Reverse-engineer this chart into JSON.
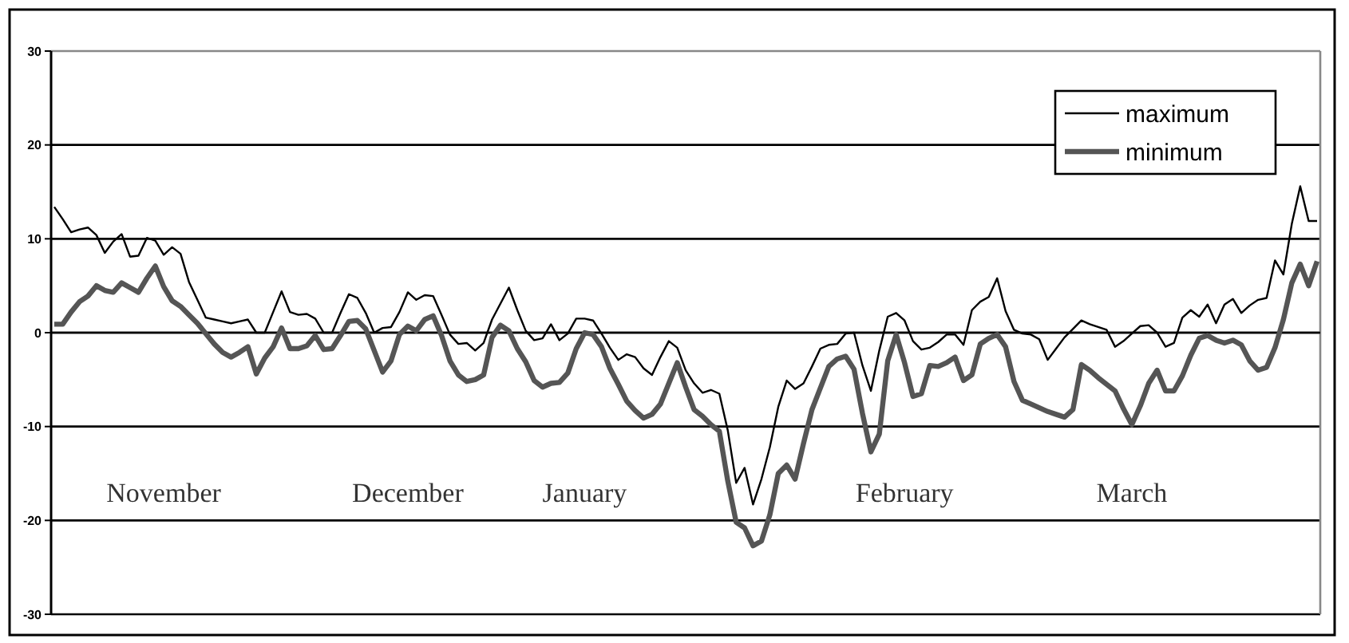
{
  "chart_data": {
    "type": "line",
    "categories": [
      null,
      null,
      null,
      null,
      null,
      null,
      null,
      null,
      null,
      null,
      null,
      null,
      null,
      "November",
      null,
      null,
      null,
      null,
      null,
      null,
      null,
      null,
      null,
      null,
      null,
      null,
      null,
      null,
      null,
      null,
      null,
      null,
      null,
      null,
      null,
      null,
      null,
      null,
      null,
      null,
      null,
      null,
      "December",
      null,
      null,
      null,
      null,
      null,
      null,
      null,
      null,
      null,
      null,
      null,
      null,
      null,
      null,
      null,
      null,
      null,
      null,
      null,
      null,
      "January",
      null,
      null,
      null,
      null,
      null,
      null,
      null,
      null,
      null,
      null,
      null,
      null,
      null,
      null,
      null,
      null,
      null,
      null,
      null,
      null,
      null,
      null,
      null,
      null,
      null,
      null,
      null,
      null,
      null,
      null,
      null,
      null,
      null,
      null,
      null,
      null,
      null,
      "February",
      null,
      null,
      null,
      null,
      null,
      null,
      null,
      null,
      null,
      null,
      null,
      null,
      null,
      null,
      null,
      null,
      null,
      null,
      null,
      null,
      null,
      null,
      null,
      null,
      null,
      null,
      "March",
      null,
      null,
      null,
      null,
      null,
      null,
      null,
      null,
      null,
      null,
      null,
      null,
      null,
      null,
      null,
      null,
      null,
      null,
      null,
      null,
      null,
      null
    ],
    "ylim": [
      -30,
      30
    ],
    "yticks": [
      -30,
      -20,
      -10,
      0,
      10,
      20,
      30
    ],
    "grid": "y",
    "legend": "top right",
    "marker": "none",
    "line_style": "solid",
    "series": [
      {
        "name": "maximum",
        "color": "#000000",
        "values": [
          13.4,
          12.1,
          10.7,
          11,
          11.2,
          10.4,
          8.5,
          9.7,
          10.5,
          8.1,
          8.2,
          10.1,
          9.8,
          8.3,
          9.1,
          8.4,
          5.4,
          3.5,
          1.6,
          1.4,
          1.2,
          1,
          1.2,
          1.4,
          0,
          0,
          2.2,
          4.4,
          2.2,
          1.9,
          2,
          1.5,
          0,
          0,
          2.1,
          4.1,
          3.7,
          2.1,
          0,
          0.5,
          0.6,
          2.2,
          4.3,
          3.5,
          4,
          3.9,
          1.9,
          -0.2,
          -1.2,
          -1.1,
          -1.9,
          -1.1,
          1.4,
          3.1,
          4.8,
          2.4,
          0.2,
          -0.8,
          -0.6,
          0.9,
          -0.8,
          -0.1,
          1.5,
          1.5,
          1.3,
          -0.1,
          -1.6,
          -2.9,
          -2.3,
          -2.6,
          -3.8,
          -4.5,
          -2.6,
          -0.9,
          -1.6,
          -4,
          -5.4,
          -6.4,
          -6.1,
          -6.5,
          -10.4,
          -16,
          -14.4,
          -18.3,
          -15.6,
          -12.2,
          -7.9,
          -5.1,
          -6,
          -5.4,
          -3.6,
          -1.7,
          -1.3,
          -1.2,
          -0.1,
          0,
          -3.5,
          -6.2,
          -1.9,
          1.7,
          2.1,
          1.3,
          -0.9,
          -1.8,
          -1.6,
          -1,
          -0.2,
          -0.2,
          -1.3,
          2.4,
          3.3,
          3.8,
          5.8,
          2.3,
          0.3,
          -0.1,
          -0.2,
          -0.7,
          -2.9,
          -1.7,
          -0.5,
          0.4,
          1.3,
          0.9,
          0.6,
          0.3,
          -1.5,
          -0.9,
          -0.1,
          0.7,
          0.8,
          0,
          -1.5,
          -1.1,
          1.6,
          2.4,
          1.7,
          3,
          1,
          3,
          3.6,
          2.1,
          2.9,
          3.5,
          3.7,
          7.7,
          6.2,
          11.6,
          15.6,
          11.9,
          11.9
        ]
      },
      {
        "name": "minimum",
        "color": "#555555",
        "values": [
          0.9,
          0.9,
          2.2,
          3.3,
          3.9,
          5,
          4.5,
          4.3,
          5.3,
          4.8,
          4.3,
          5.8,
          7.1,
          4.9,
          3.4,
          2.8,
          1.9,
          1,
          -0.1,
          -1.2,
          -2.1,
          -2.6,
          -2.1,
          -1.5,
          -4.4,
          -2.7,
          -1.5,
          0.5,
          -1.7,
          -1.7,
          -1.4,
          -0.3,
          -1.8,
          -1.7,
          -0.3,
          1.2,
          1.3,
          0.4,
          -1.9,
          -4.2,
          -3,
          -0.2,
          0.7,
          0.2,
          1.4,
          1.8,
          -0.3,
          -3,
          -4.5,
          -5.2,
          -5,
          -4.5,
          -0.5,
          0.8,
          0.2,
          -1.7,
          -3.1,
          -5.1,
          -5.8,
          -5.4,
          -5.3,
          -4.3,
          -1.7,
          0,
          -0.2,
          -1.5,
          -3.8,
          -5.5,
          -7.3,
          -8.3,
          -9.1,
          -8.7,
          -7.6,
          -5.4,
          -3.2,
          -5.8,
          -8.2,
          -8.9,
          -9.8,
          -10.5,
          -15.8,
          -20.2,
          -20.8,
          -22.7,
          -22.2,
          -19.4,
          -15,
          -14.1,
          -15.6,
          -11.8,
          -8.2,
          -5.9,
          -3.6,
          -2.8,
          -2.5,
          -3.9,
          -8.6,
          -12.7,
          -10.8,
          -3,
          -0.2,
          -3.2,
          -6.8,
          -6.5,
          -3.5,
          -3.6,
          -3.2,
          -2.6,
          -5.1,
          -4.5,
          -1.2,
          -0.6,
          -0.2,
          -1.5,
          -5.2,
          -7.2,
          -7.6,
          -8,
          -8.4,
          -8.7,
          -9,
          -8.2,
          -3.4,
          -4,
          -4.8,
          -5.5,
          -6.2,
          -8.1,
          -9.8,
          -7.8,
          -5.4,
          -4,
          -6.2,
          -6.2,
          -4.6,
          -2.4,
          -0.6,
          -0.3,
          -0.8,
          -1.1,
          -0.8,
          -1.3,
          -3,
          -4,
          -3.7,
          -1.6,
          1.4,
          5.3,
          7.3,
          5,
          7.6
        ]
      }
    ]
  }
}
